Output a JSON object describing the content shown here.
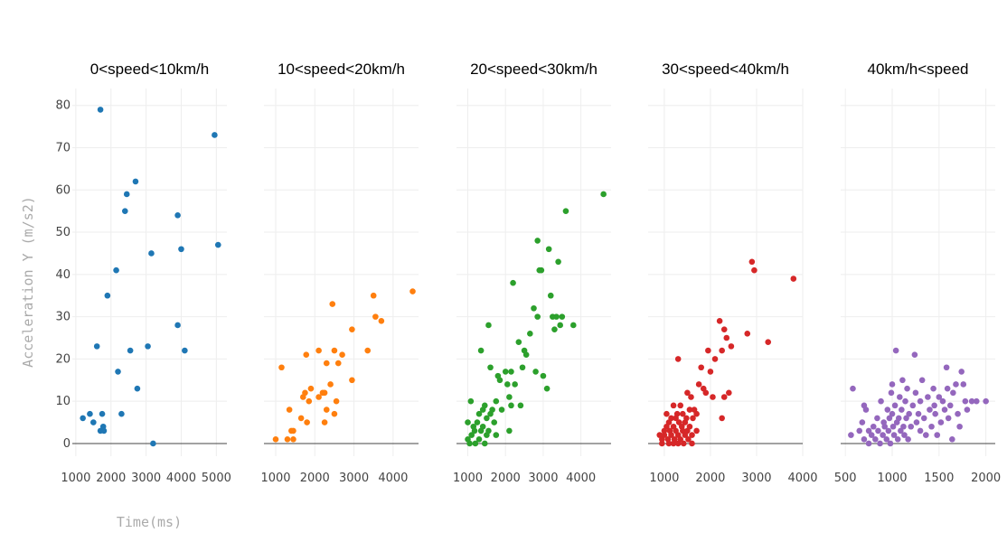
{
  "chart_data": {
    "type": "scatter",
    "xlabel": "Time(ms)",
    "ylabel": "Acceleration Y (m/s2)",
    "ylim": [
      -3,
      84
    ],
    "yticks": [
      0,
      10,
      20,
      30,
      40,
      50,
      60,
      70,
      80
    ],
    "grid": true,
    "legend": "none",
    "panels": [
      {
        "title": "0<speed<10km/h",
        "color": "#1f77b4",
        "xlim": [
          900,
          5300
        ],
        "xticks": [
          1000,
          2000,
          3000,
          4000,
          5000
        ],
        "points": [
          [
            1200,
            6
          ],
          [
            1400,
            7
          ],
          [
            1500,
            5
          ],
          [
            1600,
            23
          ],
          [
            1700,
            3
          ],
          [
            1700,
            79
          ],
          [
            1750,
            7
          ],
          [
            1780,
            4
          ],
          [
            1800,
            3
          ],
          [
            1900,
            35
          ],
          [
            2150,
            41
          ],
          [
            2200,
            17
          ],
          [
            2300,
            7
          ],
          [
            2400,
            55
          ],
          [
            2450,
            59
          ],
          [
            2550,
            22
          ],
          [
            2700,
            62
          ],
          [
            2750,
            13
          ],
          [
            3050,
            23
          ],
          [
            3150,
            45
          ],
          [
            3200,
            0
          ],
          [
            3900,
            28
          ],
          [
            3900,
            54
          ],
          [
            4000,
            46
          ],
          [
            4100,
            22
          ],
          [
            4950,
            73
          ],
          [
            5050,
            47
          ]
        ]
      },
      {
        "title": "10<speed<20km/h",
        "color": "#ff7f0e",
        "xlim": [
          700,
          4650
        ],
        "xticks": [
          1000,
          2000,
          3000,
          4000
        ],
        "points": [
          [
            1000,
            1
          ],
          [
            1150,
            18
          ],
          [
            1300,
            1
          ],
          [
            1350,
            8
          ],
          [
            1400,
            3
          ],
          [
            1450,
            3
          ],
          [
            1450,
            1
          ],
          [
            1650,
            6
          ],
          [
            1700,
            11
          ],
          [
            1750,
            12
          ],
          [
            1780,
            21
          ],
          [
            1800,
            5
          ],
          [
            1850,
            10
          ],
          [
            1900,
            13
          ],
          [
            2100,
            22
          ],
          [
            2100,
            11
          ],
          [
            2200,
            12
          ],
          [
            2250,
            12
          ],
          [
            2250,
            5
          ],
          [
            2300,
            19
          ],
          [
            2300,
            8
          ],
          [
            2400,
            14
          ],
          [
            2450,
            33
          ],
          [
            2500,
            7
          ],
          [
            2500,
            22
          ],
          [
            2550,
            10
          ],
          [
            2600,
            19
          ],
          [
            2700,
            21
          ],
          [
            2950,
            15
          ],
          [
            2950,
            27
          ],
          [
            3350,
            22
          ],
          [
            3500,
            35
          ],
          [
            3550,
            30
          ],
          [
            3700,
            29
          ],
          [
            4500,
            36
          ]
        ]
      },
      {
        "title": "20<speed<30km/h",
        "color": "#2ca02c",
        "xlim": [
          700,
          4800
        ],
        "xticks": [
          1000,
          2000,
          3000,
          4000
        ],
        "points": [
          [
            1000,
            5
          ],
          [
            1000,
            1
          ],
          [
            1050,
            0
          ],
          [
            1080,
            10
          ],
          [
            1100,
            2
          ],
          [
            1150,
            4
          ],
          [
            1180,
            3
          ],
          [
            1200,
            0
          ],
          [
            1250,
            5
          ],
          [
            1300,
            7
          ],
          [
            1300,
            1
          ],
          [
            1350,
            22
          ],
          [
            1350,
            3
          ],
          [
            1400,
            8
          ],
          [
            1400,
            4
          ],
          [
            1450,
            0
          ],
          [
            1450,
            9
          ],
          [
            1500,
            2
          ],
          [
            1500,
            6
          ],
          [
            1550,
            28
          ],
          [
            1550,
            3
          ],
          [
            1600,
            7
          ],
          [
            1600,
            18
          ],
          [
            1650,
            8
          ],
          [
            1700,
            5
          ],
          [
            1750,
            10
          ],
          [
            1750,
            2
          ],
          [
            1800,
            16
          ],
          [
            1850,
            15
          ],
          [
            1900,
            8
          ],
          [
            2000,
            17
          ],
          [
            2050,
            14
          ],
          [
            2100,
            3
          ],
          [
            2100,
            11
          ],
          [
            2150,
            9
          ],
          [
            2150,
            17
          ],
          [
            2200,
            38
          ],
          [
            2250,
            14
          ],
          [
            2350,
            24
          ],
          [
            2400,
            9
          ],
          [
            2450,
            18
          ],
          [
            2500,
            22
          ],
          [
            2550,
            21
          ],
          [
            2650,
            26
          ],
          [
            2750,
            32
          ],
          [
            2800,
            17
          ],
          [
            2850,
            48
          ],
          [
            2850,
            30
          ],
          [
            2900,
            41
          ],
          [
            2950,
            41
          ],
          [
            3000,
            16
          ],
          [
            3100,
            13
          ],
          [
            3150,
            46
          ],
          [
            3200,
            35
          ],
          [
            3250,
            30
          ],
          [
            3300,
            27
          ],
          [
            3350,
            30
          ],
          [
            3400,
            43
          ],
          [
            3450,
            28
          ],
          [
            3500,
            30
          ],
          [
            3600,
            55
          ],
          [
            3800,
            28
          ],
          [
            4600,
            59
          ]
        ]
      },
      {
        "title": "30<speed<40km/h",
        "color": "#d62728",
        "xlim": [
          650,
          4000
        ],
        "xticks": [
          1000,
          2000,
          3000,
          4000
        ],
        "points": [
          [
            900,
            2
          ],
          [
            950,
            0
          ],
          [
            950,
            1
          ],
          [
            1000,
            3
          ],
          [
            1000,
            2
          ],
          [
            1050,
            7
          ],
          [
            1050,
            4
          ],
          [
            1080,
            1
          ],
          [
            1100,
            0
          ],
          [
            1100,
            5
          ],
          [
            1120,
            3
          ],
          [
            1150,
            6
          ],
          [
            1150,
            2
          ],
          [
            1200,
            0
          ],
          [
            1200,
            9
          ],
          [
            1200,
            4
          ],
          [
            1220,
            1
          ],
          [
            1250,
            6
          ],
          [
            1250,
            3
          ],
          [
            1280,
            7
          ],
          [
            1300,
            20
          ],
          [
            1300,
            2
          ],
          [
            1300,
            0
          ],
          [
            1320,
            5
          ],
          [
            1350,
            9
          ],
          [
            1350,
            1
          ],
          [
            1380,
            4
          ],
          [
            1400,
            7
          ],
          [
            1400,
            3
          ],
          [
            1420,
            0
          ],
          [
            1450,
            5
          ],
          [
            1450,
            2
          ],
          [
            1480,
            6
          ],
          [
            1500,
            12
          ],
          [
            1500,
            3
          ],
          [
            1520,
            1
          ],
          [
            1550,
            8
          ],
          [
            1550,
            4
          ],
          [
            1580,
            11
          ],
          [
            1600,
            2
          ],
          [
            1600,
            0
          ],
          [
            1620,
            6
          ],
          [
            1650,
            8
          ],
          [
            1700,
            7
          ],
          [
            1700,
            3
          ],
          [
            1750,
            14
          ],
          [
            1800,
            18
          ],
          [
            1850,
            13
          ],
          [
            1900,
            12
          ],
          [
            1950,
            22
          ],
          [
            2000,
            17
          ],
          [
            2050,
            11
          ],
          [
            2100,
            20
          ],
          [
            2200,
            29
          ],
          [
            2250,
            6
          ],
          [
            2250,
            22
          ],
          [
            2300,
            11
          ],
          [
            2300,
            27
          ],
          [
            2350,
            25
          ],
          [
            2400,
            12
          ],
          [
            2450,
            23
          ],
          [
            2800,
            26
          ],
          [
            2900,
            43
          ],
          [
            2950,
            41
          ],
          [
            3250,
            24
          ],
          [
            3800,
            39
          ]
        ]
      },
      {
        "title": "40km/h<speed",
        "color": "#9467bd",
        "xlim": [
          450,
          2100
        ],
        "xticks": [
          500,
          1000,
          1500,
          2000
        ],
        "points": [
          [
            560,
            2
          ],
          [
            580,
            13
          ],
          [
            650,
            3
          ],
          [
            680,
            5
          ],
          [
            700,
            1
          ],
          [
            700,
            9
          ],
          [
            720,
            8
          ],
          [
            750,
            3
          ],
          [
            750,
            0
          ],
          [
            780,
            2
          ],
          [
            800,
            4
          ],
          [
            820,
            1
          ],
          [
            840,
            6
          ],
          [
            850,
            3
          ],
          [
            870,
            0
          ],
          [
            880,
            10
          ],
          [
            900,
            2
          ],
          [
            910,
            5
          ],
          [
            920,
            4
          ],
          [
            940,
            1
          ],
          [
            950,
            8
          ],
          [
            960,
            3
          ],
          [
            970,
            6
          ],
          [
            980,
            0
          ],
          [
            990,
            12
          ],
          [
            1000,
            14
          ],
          [
            1000,
            7
          ],
          [
            1010,
            4
          ],
          [
            1020,
            2
          ],
          [
            1030,
            9
          ],
          [
            1040,
            22
          ],
          [
            1050,
            5
          ],
          [
            1060,
            1
          ],
          [
            1070,
            6
          ],
          [
            1080,
            11
          ],
          [
            1090,
            3
          ],
          [
            1100,
            8
          ],
          [
            1110,
            15
          ],
          [
            1120,
            4
          ],
          [
            1130,
            2
          ],
          [
            1140,
            10
          ],
          [
            1150,
            6
          ],
          [
            1160,
            13
          ],
          [
            1170,
            1
          ],
          [
            1180,
            7
          ],
          [
            1200,
            4
          ],
          [
            1220,
            9
          ],
          [
            1240,
            21
          ],
          [
            1250,
            12
          ],
          [
            1260,
            5
          ],
          [
            1280,
            7
          ],
          [
            1300,
            10
          ],
          [
            1300,
            3
          ],
          [
            1320,
            15
          ],
          [
            1340,
            6
          ],
          [
            1360,
            2
          ],
          [
            1380,
            11
          ],
          [
            1400,
            8
          ],
          [
            1420,
            4
          ],
          [
            1440,
            13
          ],
          [
            1450,
            9
          ],
          [
            1460,
            7
          ],
          [
            1480,
            2
          ],
          [
            1500,
            11
          ],
          [
            1520,
            5
          ],
          [
            1540,
            10
          ],
          [
            1560,
            8
          ],
          [
            1580,
            18
          ],
          [
            1590,
            13
          ],
          [
            1600,
            6
          ],
          [
            1620,
            9
          ],
          [
            1640,
            1
          ],
          [
            1650,
            12
          ],
          [
            1680,
            14
          ],
          [
            1700,
            7
          ],
          [
            1720,
            4
          ],
          [
            1740,
            17
          ],
          [
            1760,
            14
          ],
          [
            1780,
            10
          ],
          [
            1800,
            8
          ],
          [
            1850,
            10
          ],
          [
            1900,
            10
          ],
          [
            2000,
            10
          ]
        ]
      }
    ]
  }
}
